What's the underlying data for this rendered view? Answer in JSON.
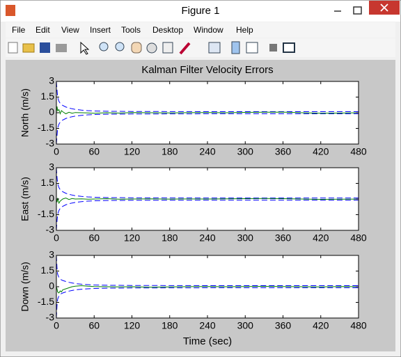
{
  "window": {
    "title": "Figure 1",
    "menus": [
      "File",
      "Edit",
      "View",
      "Insert",
      "Tools",
      "Desktop",
      "Window",
      "Help"
    ]
  },
  "chart_data": [
    {
      "type": "line",
      "title": "Kalman Filter Velocity Errors",
      "y_label": "North (m/s)",
      "x": [
        0,
        1,
        2,
        4,
        6,
        8,
        10,
        15,
        20,
        25,
        30,
        40,
        50,
        60,
        80,
        100,
        120,
        150,
        180,
        210,
        240,
        270,
        300,
        330,
        360,
        390,
        420,
        450,
        480
      ],
      "series": [
        {
          "color": "#0000ff",
          "dash": true,
          "values": [
            3,
            2.2,
            1.5,
            1.1,
            0.9,
            0.8,
            0.7,
            0.55,
            0.45,
            0.38,
            0.32,
            0.25,
            0.2,
            0.17,
            0.14,
            0.13,
            0.12,
            0.12,
            0.11,
            0.11,
            0.1,
            0.1,
            0.1,
            0.1,
            0.1,
            0.1,
            0.1,
            0.1,
            0.1
          ]
        },
        {
          "color": "#0000ff",
          "dash": true,
          "values": [
            -3,
            -2.2,
            -1.5,
            -1.1,
            -0.9,
            -0.8,
            -0.7,
            -0.55,
            -0.45,
            -0.38,
            -0.32,
            -0.25,
            -0.2,
            -0.17,
            -0.14,
            -0.13,
            -0.12,
            -0.12,
            -0.11,
            -0.11,
            -0.1,
            -0.1,
            -0.1,
            -0.1,
            -0.1,
            -0.1,
            -0.1,
            -0.1,
            -0.1
          ]
        },
        {
          "color": "#008000",
          "dash": false,
          "values": [
            0,
            0.6,
            0.2,
            0.3,
            -0.1,
            0.2,
            0.1,
            -0.1,
            0.05,
            -0.05,
            0.02,
            0,
            -0.02,
            -0.05,
            0,
            -0.03,
            0.02,
            0,
            -0.02,
            0.01,
            0.02,
            0,
            0.03,
            0.05,
            0.06,
            0,
            -0.05,
            -0.03,
            0
          ]
        }
      ],
      "xlim": [
        0,
        480
      ],
      "xticks": [
        0,
        60,
        120,
        180,
        240,
        300,
        360,
        420,
        480
      ],
      "ylim": [
        -3,
        3
      ],
      "yticks": [
        -3,
        -1.5,
        0,
        1.5,
        3
      ],
      "grid": false
    },
    {
      "type": "line",
      "y_label": "East (m/s)",
      "x": [
        0,
        1,
        2,
        4,
        6,
        8,
        10,
        15,
        20,
        25,
        30,
        40,
        50,
        60,
        80,
        100,
        120,
        150,
        180,
        210,
        240,
        270,
        300,
        330,
        360,
        390,
        420,
        450,
        480
      ],
      "series": [
        {
          "color": "#0000ff",
          "dash": true,
          "values": [
            3,
            2.1,
            1.5,
            1.1,
            0.9,
            0.8,
            0.7,
            0.55,
            0.45,
            0.38,
            0.32,
            0.25,
            0.2,
            0.17,
            0.14,
            0.13,
            0.12,
            0.12,
            0.11,
            0.11,
            0.1,
            0.1,
            0.1,
            0.1,
            0.1,
            0.1,
            0.1,
            0.1,
            0.1
          ]
        },
        {
          "color": "#0000ff",
          "dash": true,
          "values": [
            -3,
            -2.1,
            -1.5,
            -1.1,
            -0.9,
            -0.8,
            -0.7,
            -0.55,
            -0.45,
            -0.38,
            -0.32,
            -0.25,
            -0.2,
            -0.17,
            -0.14,
            -0.13,
            -0.12,
            -0.12,
            -0.11,
            -0.11,
            -0.1,
            -0.1,
            -0.1,
            -0.1,
            -0.1,
            -0.1,
            -0.1,
            -0.1,
            -0.1
          ]
        },
        {
          "color": "#008000",
          "dash": false,
          "values": [
            0,
            -0.3,
            0.1,
            -0.4,
            -0.2,
            -0.1,
            0,
            0.1,
            -0.05,
            0.05,
            0,
            0.02,
            -0.02,
            0,
            0.03,
            -0.02,
            0,
            0.02,
            -0.01,
            0.01,
            0,
            0.02,
            0.03,
            0.05,
            0.03,
            0,
            -0.03,
            -0.02,
            0
          ]
        }
      ],
      "xlim": [
        0,
        480
      ],
      "xticks": [
        0,
        60,
        120,
        180,
        240,
        300,
        360,
        420,
        480
      ],
      "ylim": [
        -3,
        3
      ],
      "yticks": [
        -3,
        -1.5,
        0,
        1.5,
        3
      ],
      "grid": false
    },
    {
      "type": "line",
      "y_label": "Down (m/s)",
      "x_label": "Time (sec)",
      "x": [
        0,
        1,
        2,
        4,
        6,
        8,
        10,
        15,
        20,
        25,
        30,
        40,
        50,
        60,
        80,
        100,
        120,
        150,
        180,
        210,
        240,
        270,
        300,
        330,
        360,
        390,
        420,
        450,
        480
      ],
      "series": [
        {
          "color": "#0000ff",
          "dash": true,
          "values": [
            3,
            1.8,
            1.2,
            0.9,
            0.75,
            0.65,
            0.6,
            0.5,
            0.42,
            0.36,
            0.3,
            0.24,
            0.2,
            0.17,
            0.14,
            0.13,
            0.12,
            0.12,
            0.11,
            0.11,
            0.1,
            0.1,
            0.1,
            0.1,
            0.1,
            0.1,
            0.1,
            0.1,
            0.1
          ]
        },
        {
          "color": "#0000ff",
          "dash": true,
          "values": [
            -3,
            -1.8,
            -1.2,
            -0.9,
            -0.75,
            -0.65,
            -0.6,
            -0.5,
            -0.42,
            -0.36,
            -0.3,
            -0.24,
            -0.2,
            -0.17,
            -0.14,
            -0.13,
            -0.12,
            -0.12,
            -0.11,
            -0.11,
            -0.1,
            -0.1,
            -0.1,
            -0.1,
            -0.1,
            -0.1,
            -0.1,
            -0.1,
            -0.1
          ]
        },
        {
          "color": "#008000",
          "dash": false,
          "values": [
            0,
            -0.2,
            -0.5,
            -0.6,
            -0.4,
            -0.5,
            -0.3,
            -0.2,
            -0.1,
            0,
            0.05,
            0.1,
            0.05,
            0.02,
            0,
            -0.02,
            0,
            -0.05,
            -0.02,
            0.01,
            0.02,
            0,
            0.02,
            0.03,
            0.02,
            0,
            -0.02,
            0.02,
            0
          ]
        }
      ],
      "xlim": [
        0,
        480
      ],
      "xticks": [
        0,
        60,
        120,
        180,
        240,
        300,
        360,
        420,
        480
      ],
      "ylim": [
        -3,
        3
      ],
      "yticks": [
        -3,
        -1.5,
        0,
        1.5,
        3
      ],
      "grid": false
    }
  ]
}
